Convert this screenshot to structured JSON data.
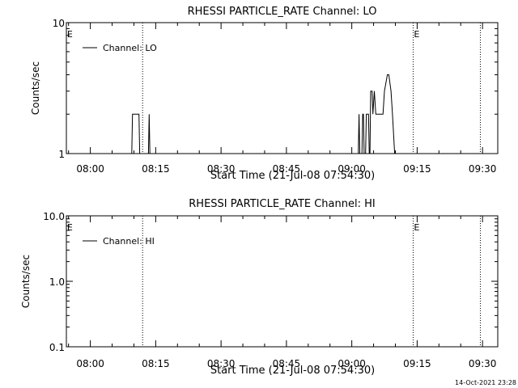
{
  "footer_timestamp": "14-Oct-2021 23:28",
  "chart_data": [
    {
      "type": "line",
      "title": "RHESSI PARTICLE_RATE Channel: LO",
      "xlabel": "Start Time (21-Jul-08 07:54:30)",
      "ylabel": "Counts/sec",
      "y_scale": "log",
      "xlim": [
        "07:54:30",
        "09:33:30"
      ],
      "ylim": [
        1,
        10
      ],
      "x_ticks": [
        "08:00",
        "08:15",
        "08:30",
        "08:45",
        "09:00",
        "09:15",
        "09:30"
      ],
      "y_ticks": [
        "1",
        "10"
      ],
      "legend": {
        "position": "top-left",
        "label": "Channel: LO"
      },
      "annotations": [
        {
          "text": "E",
          "x": "07:54:40"
        },
        {
          "text": "E",
          "x": "09:14:15"
        }
      ],
      "vertical_dotted_lines": [
        "08:12:00",
        "09:14:05",
        "09:29:30"
      ],
      "series": [
        {
          "name": "Channel: LO",
          "points": [
            [
              "08:09:30",
              1
            ],
            [
              "08:09:40",
              2
            ],
            [
              "08:11:10",
              2
            ],
            [
              "08:11:20",
              1
            ],
            [
              "08:13:20",
              1
            ],
            [
              "08:13:30",
              2
            ],
            [
              "08:13:40",
              1
            ],
            [
              "09:01:30",
              1
            ],
            [
              "09:01:40",
              2
            ],
            [
              "09:01:50",
              1
            ],
            [
              "09:02:20",
              1
            ],
            [
              "09:02:30",
              2
            ],
            [
              "09:02:40",
              2
            ],
            [
              "09:02:50",
              1
            ],
            [
              "09:03:10",
              1
            ],
            [
              "09:03:20",
              2
            ],
            [
              "09:03:50",
              2
            ],
            [
              "09:04:00",
              1
            ],
            [
              "09:04:10",
              1
            ],
            [
              "09:04:20",
              3
            ],
            [
              "09:04:40",
              3
            ],
            [
              "09:04:50",
              2
            ],
            [
              "09:05:10",
              3
            ],
            [
              "09:05:30",
              2
            ],
            [
              "09:07:10",
              2
            ],
            [
              "09:07:30",
              3
            ],
            [
              "09:08:10",
              4
            ],
            [
              "09:08:30",
              4
            ],
            [
              "09:09:00",
              3
            ],
            [
              "09:09:20",
              2
            ],
            [
              "09:09:50",
              1
            ]
          ]
        }
      ]
    },
    {
      "type": "line",
      "title": "RHESSI PARTICLE_RATE Channel: HI",
      "xlabel": "Start Time (21-Jul-08 07:54:30)",
      "ylabel": "Counts/sec",
      "y_scale": "log",
      "xlim": [
        "07:54:30",
        "09:33:30"
      ],
      "ylim": [
        0.1,
        10
      ],
      "x_ticks": [
        "08:00",
        "08:15",
        "08:30",
        "08:45",
        "09:00",
        "09:15",
        "09:30"
      ],
      "y_ticks": [
        "0.1",
        "1.0",
        "10.0"
      ],
      "legend": {
        "position": "top-left",
        "label": "Channel: HI"
      },
      "annotations": [
        {
          "text": "E",
          "x": "07:54:40"
        },
        {
          "text": "E",
          "x": "09:14:15"
        }
      ],
      "vertical_dotted_lines": [
        "08:12:00",
        "09:14:05",
        "09:29:30"
      ],
      "series": [
        {
          "name": "Channel: HI",
          "points": []
        }
      ]
    }
  ]
}
